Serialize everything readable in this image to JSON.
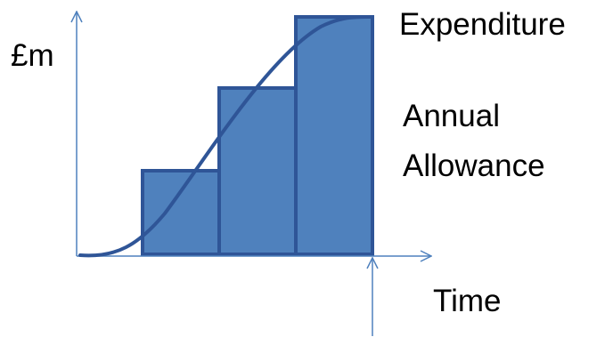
{
  "labels": {
    "y_axis": "£m",
    "curve": "Expenditure",
    "bars_line1": "Annual",
    "bars_line2": "Allowance",
    "x_axis": "Time"
  },
  "colors": {
    "axis": "#4f81bd",
    "bar_fill": "#4f81bd",
    "bar_outline": "#2f5597",
    "curve": "#2f5597",
    "text": "#000000"
  },
  "diagram": {
    "steps": 3,
    "step_levels": [
      1,
      2,
      3
    ],
    "curve_shape": "s-curve"
  }
}
